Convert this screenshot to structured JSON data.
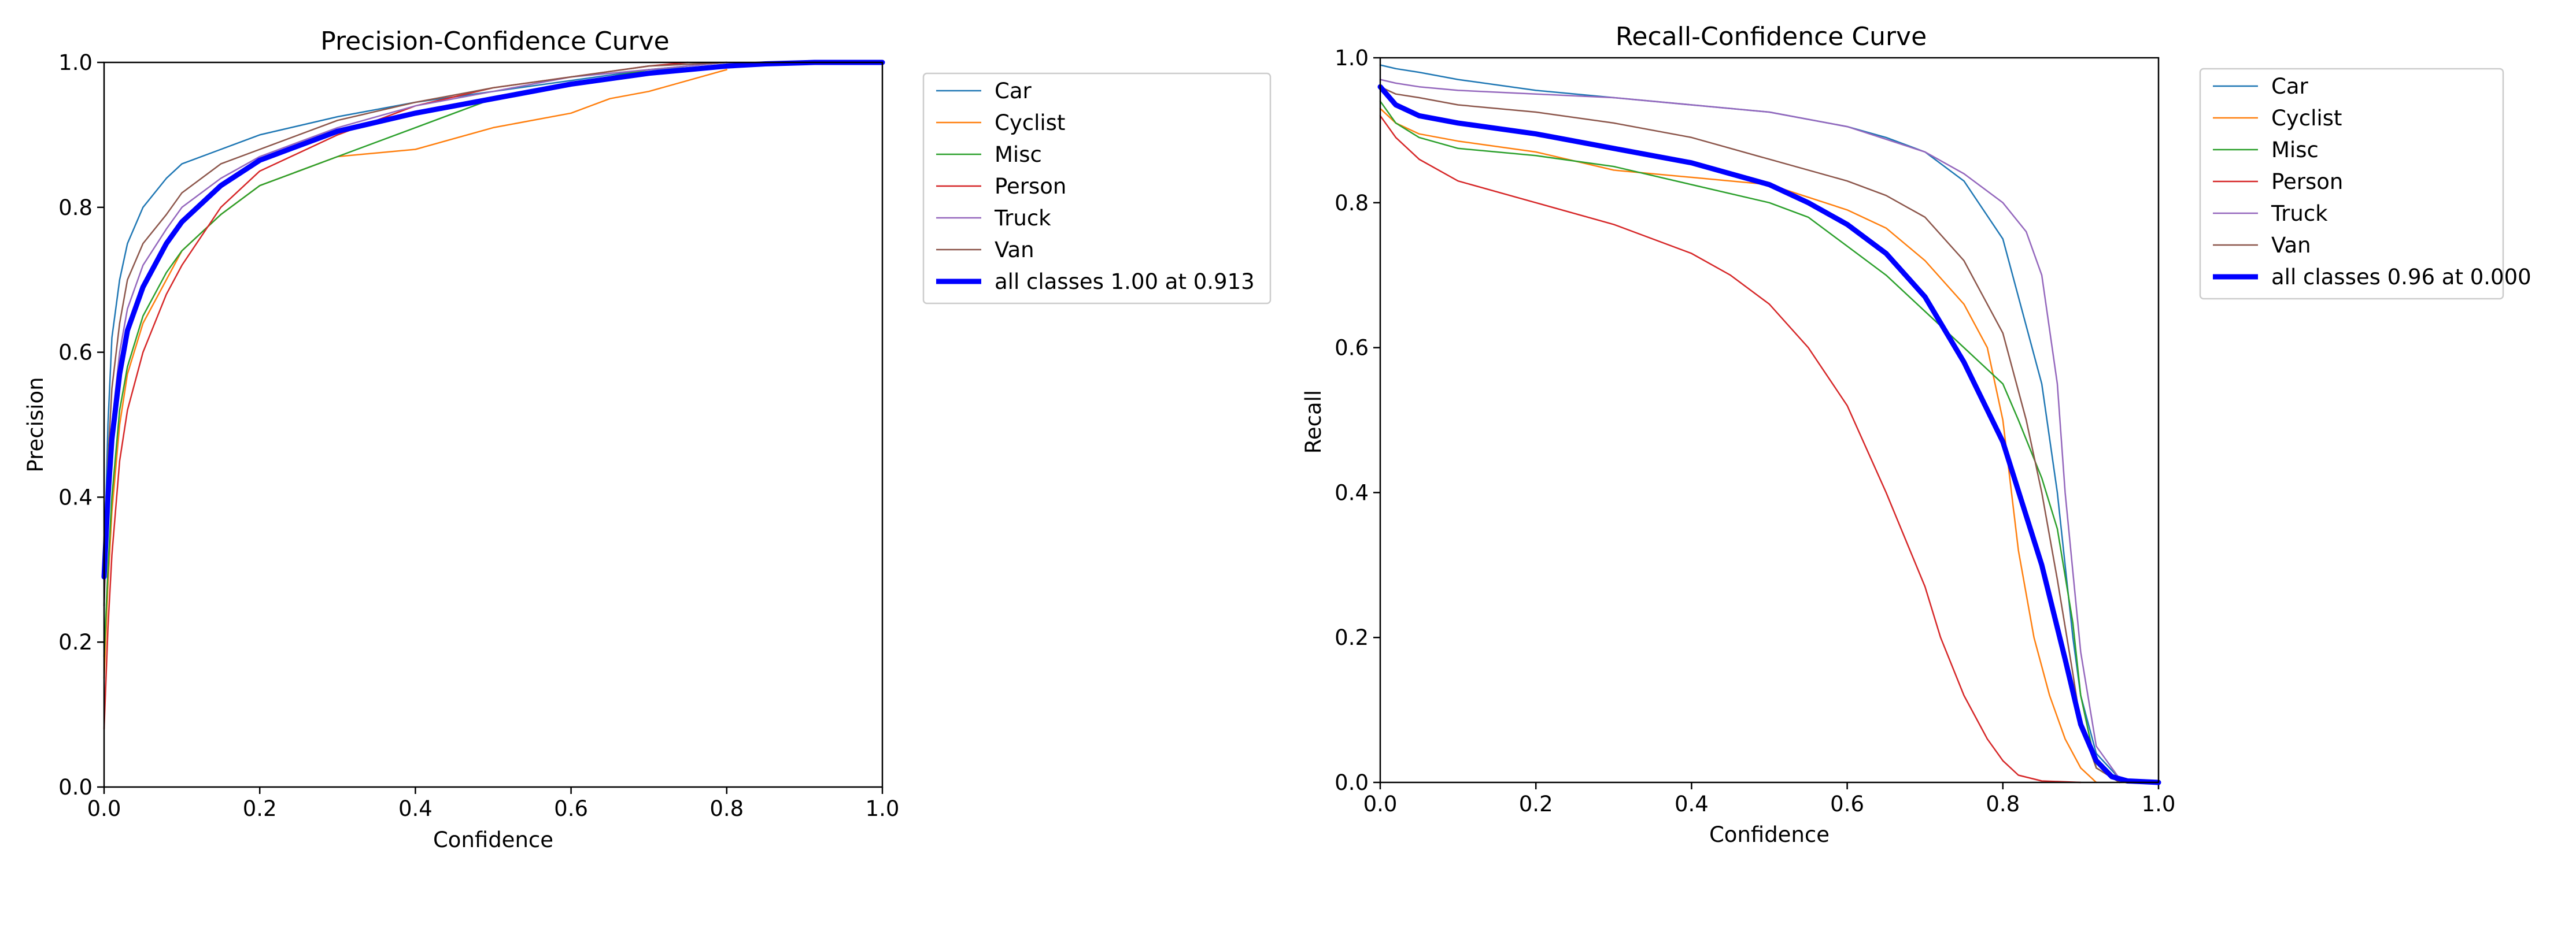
{
  "chart_data": [
    {
      "type": "line",
      "title": "Precision-Confidence Curve",
      "xlabel": "Confidence",
      "ylabel": "Precision",
      "xlim": [
        0,
        1
      ],
      "ylim": [
        0,
        1
      ],
      "xticks": [
        "0.0",
        "0.2",
        "0.4",
        "0.6",
        "0.8",
        "1.0"
      ],
      "yticks": [
        "0.0",
        "0.2",
        "0.4",
        "0.6",
        "0.8",
        "1.0"
      ],
      "grid": false,
      "legend_placement": "outside-right",
      "series": [
        {
          "name": "Car",
          "color": "#1f77b4",
          "width": "thin",
          "x": [
            0.0,
            0.005,
            0.01,
            0.02,
            0.03,
            0.05,
            0.08,
            0.1,
            0.15,
            0.2,
            0.3,
            0.4,
            0.5,
            0.6,
            0.7,
            0.8,
            0.85,
            1.0
          ],
          "y": [
            0.3,
            0.5,
            0.62,
            0.7,
            0.75,
            0.8,
            0.84,
            0.86,
            0.88,
            0.9,
            0.925,
            0.945,
            0.96,
            0.975,
            0.99,
            0.995,
            1.0,
            1.0
          ]
        },
        {
          "name": "Cyclist",
          "color": "#ff7f0e",
          "width": "thin",
          "x": [
            0.0,
            0.005,
            0.01,
            0.02,
            0.03,
            0.05,
            0.08,
            0.1,
            0.15,
            0.2,
            0.3,
            0.4,
            0.5,
            0.6,
            0.65,
            0.7,
            0.8
          ],
          "y": [
            0.15,
            0.28,
            0.38,
            0.5,
            0.57,
            0.64,
            0.7,
            0.74,
            0.79,
            0.83,
            0.87,
            0.88,
            0.91,
            0.93,
            0.95,
            0.96,
            0.99
          ]
        },
        {
          "name": "Misc",
          "color": "#2ca02c",
          "width": "thin",
          "x": [
            0.0,
            0.005,
            0.01,
            0.02,
            0.03,
            0.05,
            0.08,
            0.1,
            0.15,
            0.2,
            0.3,
            0.4,
            0.5,
            0.6,
            0.7,
            0.8
          ],
          "y": [
            0.18,
            0.3,
            0.4,
            0.52,
            0.58,
            0.65,
            0.71,
            0.74,
            0.79,
            0.83,
            0.87,
            0.91,
            0.95,
            0.97,
            0.99,
            1.0
          ]
        },
        {
          "name": "Person",
          "color": "#d62728",
          "width": "thin",
          "x": [
            0.0,
            0.005,
            0.01,
            0.02,
            0.03,
            0.05,
            0.08,
            0.1,
            0.15,
            0.2,
            0.3,
            0.4,
            0.5,
            0.6,
            0.7,
            0.75
          ],
          "y": [
            0.08,
            0.22,
            0.32,
            0.45,
            0.52,
            0.6,
            0.68,
            0.72,
            0.8,
            0.85,
            0.9,
            0.94,
            0.965,
            0.98,
            0.995,
            1.0
          ]
        },
        {
          "name": "Truck",
          "color": "#9467bd",
          "width": "thin",
          "x": [
            0.0,
            0.005,
            0.01,
            0.02,
            0.03,
            0.05,
            0.08,
            0.1,
            0.15,
            0.2,
            0.3,
            0.4,
            0.5,
            0.6,
            0.7,
            0.8
          ],
          "y": [
            0.25,
            0.4,
            0.5,
            0.6,
            0.66,
            0.72,
            0.77,
            0.8,
            0.84,
            0.87,
            0.91,
            0.94,
            0.96,
            0.98,
            0.99,
            1.0
          ]
        },
        {
          "name": "Van",
          "color": "#8c564b",
          "width": "thin",
          "x": [
            0.0,
            0.005,
            0.01,
            0.02,
            0.03,
            0.05,
            0.08,
            0.1,
            0.15,
            0.2,
            0.3,
            0.4,
            0.5,
            0.6,
            0.7,
            0.8
          ],
          "y": [
            0.25,
            0.45,
            0.55,
            0.64,
            0.7,
            0.75,
            0.79,
            0.82,
            0.86,
            0.88,
            0.92,
            0.945,
            0.965,
            0.98,
            0.995,
            1.0
          ]
        },
        {
          "name": "all classes 1.00 at 0.913",
          "color": "#0000ff",
          "width": "thick",
          "x": [
            0.0,
            0.005,
            0.01,
            0.02,
            0.03,
            0.05,
            0.08,
            0.1,
            0.15,
            0.2,
            0.3,
            0.4,
            0.5,
            0.6,
            0.7,
            0.8,
            0.85,
            0.913,
            1.0
          ],
          "y": [
            0.29,
            0.4,
            0.48,
            0.57,
            0.63,
            0.69,
            0.75,
            0.78,
            0.83,
            0.865,
            0.905,
            0.93,
            0.95,
            0.97,
            0.985,
            0.995,
            0.998,
            1.0,
            1.0
          ]
        }
      ]
    },
    {
      "type": "line",
      "title": "Recall-Confidence Curve",
      "xlabel": "Confidence",
      "ylabel": "Recall",
      "xlim": [
        0,
        1
      ],
      "ylim": [
        0,
        1
      ],
      "xticks": [
        "0.0",
        "0.2",
        "0.4",
        "0.6",
        "0.8",
        "1.0"
      ],
      "yticks": [
        "0.0",
        "0.2",
        "0.4",
        "0.6",
        "0.8",
        "1.0"
      ],
      "grid": false,
      "legend_placement": "outside-right",
      "series": [
        {
          "name": "Car",
          "color": "#1f77b4",
          "width": "thin",
          "x": [
            0.0,
            0.02,
            0.05,
            0.1,
            0.2,
            0.3,
            0.4,
            0.5,
            0.6,
            0.65,
            0.7,
            0.75,
            0.8,
            0.85,
            0.87,
            0.89,
            0.9,
            0.92,
            0.95,
            1.0
          ],
          "y": [
            0.99,
            0.985,
            0.98,
            0.97,
            0.955,
            0.945,
            0.935,
            0.925,
            0.905,
            0.89,
            0.87,
            0.83,
            0.75,
            0.55,
            0.4,
            0.2,
            0.12,
            0.04,
            0.005,
            0.0
          ]
        },
        {
          "name": "Cyclist",
          "color": "#ff7f0e",
          "width": "thin",
          "x": [
            0.0,
            0.02,
            0.05,
            0.1,
            0.2,
            0.3,
            0.4,
            0.5,
            0.6,
            0.65,
            0.7,
            0.75,
            0.78,
            0.8,
            0.82,
            0.84,
            0.86,
            0.88,
            0.9,
            0.92
          ],
          "y": [
            0.93,
            0.91,
            0.895,
            0.885,
            0.87,
            0.845,
            0.835,
            0.825,
            0.79,
            0.765,
            0.72,
            0.66,
            0.6,
            0.5,
            0.32,
            0.2,
            0.12,
            0.06,
            0.02,
            0.0
          ]
        },
        {
          "name": "Misc",
          "color": "#2ca02c",
          "width": "thin",
          "x": [
            0.0,
            0.02,
            0.05,
            0.1,
            0.2,
            0.3,
            0.4,
            0.5,
            0.55,
            0.6,
            0.65,
            0.7,
            0.75,
            0.8,
            0.82,
            0.85,
            0.87,
            0.89,
            0.9,
            0.92,
            0.95
          ],
          "y": [
            0.94,
            0.91,
            0.89,
            0.875,
            0.865,
            0.85,
            0.825,
            0.8,
            0.78,
            0.74,
            0.7,
            0.65,
            0.6,
            0.55,
            0.5,
            0.42,
            0.35,
            0.22,
            0.12,
            0.02,
            0.0
          ]
        },
        {
          "name": "Person",
          "color": "#d62728",
          "width": "thin",
          "x": [
            0.0,
            0.02,
            0.05,
            0.1,
            0.2,
            0.3,
            0.4,
            0.45,
            0.5,
            0.55,
            0.6,
            0.65,
            0.7,
            0.72,
            0.75,
            0.78,
            0.8,
            0.82,
            0.85,
            0.9
          ],
          "y": [
            0.92,
            0.89,
            0.86,
            0.83,
            0.8,
            0.77,
            0.73,
            0.7,
            0.66,
            0.6,
            0.52,
            0.4,
            0.27,
            0.2,
            0.12,
            0.06,
            0.03,
            0.01,
            0.002,
            0.0
          ]
        },
        {
          "name": "Truck",
          "color": "#9467bd",
          "width": "thin",
          "x": [
            0.0,
            0.02,
            0.05,
            0.1,
            0.2,
            0.3,
            0.4,
            0.5,
            0.6,
            0.7,
            0.75,
            0.8,
            0.83,
            0.85,
            0.87,
            0.88,
            0.9,
            0.92,
            0.95,
            1.0
          ],
          "y": [
            0.97,
            0.965,
            0.96,
            0.955,
            0.95,
            0.945,
            0.935,
            0.925,
            0.905,
            0.87,
            0.84,
            0.8,
            0.76,
            0.7,
            0.55,
            0.4,
            0.18,
            0.05,
            0.005,
            0.0
          ]
        },
        {
          "name": "Van",
          "color": "#8c564b",
          "width": "thin",
          "x": [
            0.0,
            0.02,
            0.05,
            0.1,
            0.2,
            0.3,
            0.4,
            0.5,
            0.6,
            0.65,
            0.7,
            0.75,
            0.8,
            0.83,
            0.85,
            0.87,
            0.89,
            0.9,
            0.92,
            0.95
          ],
          "y": [
            0.96,
            0.95,
            0.945,
            0.935,
            0.925,
            0.91,
            0.89,
            0.86,
            0.83,
            0.81,
            0.78,
            0.72,
            0.62,
            0.5,
            0.4,
            0.28,
            0.15,
            0.08,
            0.02,
            0.0
          ]
        },
        {
          "name": "all classes 0.96 at 0.000",
          "color": "#0000ff",
          "width": "thick",
          "x": [
            0.0,
            0.02,
            0.05,
            0.1,
            0.2,
            0.3,
            0.4,
            0.5,
            0.55,
            0.6,
            0.65,
            0.7,
            0.75,
            0.8,
            0.85,
            0.88,
            0.9,
            0.92,
            0.94,
            0.96,
            1.0
          ],
          "y": [
            0.96,
            0.935,
            0.92,
            0.91,
            0.895,
            0.875,
            0.855,
            0.825,
            0.8,
            0.77,
            0.73,
            0.67,
            0.58,
            0.47,
            0.3,
            0.17,
            0.08,
            0.03,
            0.008,
            0.002,
            0.0
          ]
        }
      ]
    }
  ]
}
